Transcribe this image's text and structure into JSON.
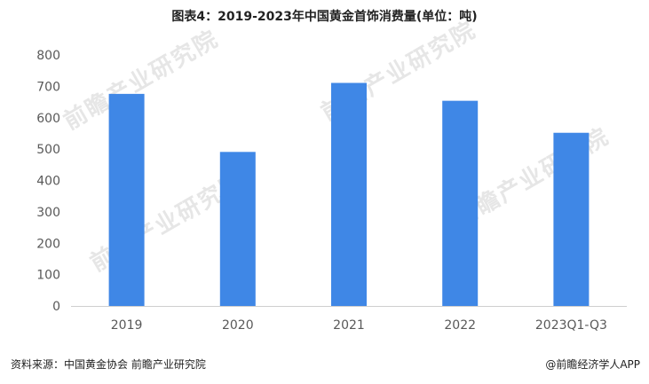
{
  "title": "图表4：2019-2023年中国黄金首饰消费量(单位：吨)",
  "watermark_text": "前瞻产业研究院",
  "source": "资料来源：中国黄金协会 前瞻产业研究院",
  "brand": "@前瞻经济学人APP",
  "bar_color": "#3f87e6",
  "chart_data": {
    "type": "bar",
    "title": "图表4：2019-2023年中国黄金首饰消费量(单位：吨)",
    "categories": [
      "2019",
      "2020",
      "2021",
      "2022",
      "2023Q1-Q3"
    ],
    "values": [
      676,
      491,
      711,
      654,
      552
    ],
    "xlabel": "",
    "ylabel": "",
    "ylim": [
      0,
      800
    ],
    "yticks": [
      "0",
      "100",
      "200",
      "300",
      "400",
      "500",
      "600",
      "700",
      "800"
    ],
    "grid": false,
    "legend": "none"
  }
}
